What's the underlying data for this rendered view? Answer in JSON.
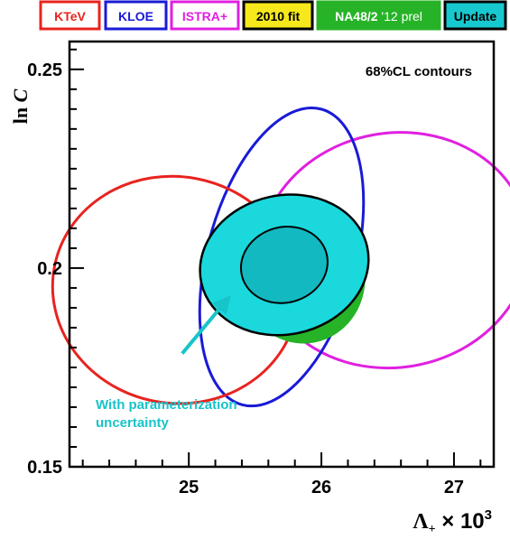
{
  "chart_data": {
    "type": "scatter",
    "subtype": "confidence-ellipses",
    "annotation_top_right": "68%CL contours",
    "annotation_arrow_text": [
      "With parameterization",
      "uncertainty"
    ],
    "xlabel": {
      "main": "Λ",
      "sub": "+",
      "suffix": "× 10",
      "exp": "3"
    },
    "ylabel": {
      "prefix": "ln",
      "var": "C"
    },
    "xlim": [
      24.1,
      27.3
    ],
    "ylim": [
      0.15,
      0.257
    ],
    "x_ticks": [
      {
        "value": 25,
        "label": "25"
      },
      {
        "value": 26,
        "label": "26"
      },
      {
        "value": 27,
        "label": "27"
      }
    ],
    "y_ticks": [
      {
        "value": 0.15,
        "label": "0.15"
      },
      {
        "value": 0.2,
        "label": "0.2"
      },
      {
        "value": 0.25,
        "label": "0.25"
      }
    ],
    "legend_placement": "top",
    "legend": [
      {
        "key": "ktev",
        "parts": [
          {
            "text": "KTeV",
            "bold": true,
            "color": "#e8231f"
          }
        ],
        "box_fill": "#ffffff",
        "box_border": "#e8231f"
      },
      {
        "key": "kloe",
        "parts": [
          {
            "text": "KLOE",
            "bold": true,
            "color": "#1a1ad6"
          }
        ],
        "box_fill": "#ffffff",
        "box_border": "#1a1ad6"
      },
      {
        "key": "istra",
        "parts": [
          {
            "text": "ISTRA+",
            "bold": true,
            "color": "#e020e0"
          }
        ],
        "box_fill": "#ffffff",
        "box_border": "#e020e0"
      },
      {
        "key": "fit2010",
        "parts": [
          {
            "text": "2010 fit",
            "bold": true,
            "color": "#000000"
          }
        ],
        "box_fill": "#f7e81c",
        "box_border": "#000000"
      },
      {
        "key": "na48",
        "parts": [
          {
            "text": "NA48/2",
            "bold": true,
            "color": "#ffffff"
          },
          {
            "text": " '12 prel",
            "bold": false,
            "color": "#ffffff"
          }
        ],
        "box_fill": "#27b327",
        "box_border": "#27b327"
      },
      {
        "key": "update",
        "parts": [
          {
            "text": "Update",
            "bold": true,
            "color": "#000000"
          }
        ],
        "box_fill": "#17c9cf",
        "box_border": "#000000"
      }
    ],
    "series": [
      {
        "name": "ISTRA+",
        "color": "#e020e0",
        "fill": "none",
        "center": [
          26.55,
          0.2045
        ],
        "semi_axes": [
          1.02,
          0.0295
        ],
        "angle_deg": 10,
        "stroke_width": 3
      },
      {
        "name": "KLOE",
        "color": "#1a1ad6",
        "fill": "none",
        "center": [
          25.7,
          0.2028
        ],
        "semi_axes": [
          0.56,
          0.0385
        ],
        "angle_deg": -15,
        "stroke_width": 3
      },
      {
        "name": "KTeV",
        "color": "#e8231f",
        "fill": "none",
        "center": [
          24.9,
          0.1945
        ],
        "semi_axes": [
          0.93,
          0.0285
        ],
        "angle_deg": -11,
        "stroke_width": 3
      },
      {
        "name": "NA48/2 '12 prel",
        "color": "#1faa1f",
        "fill": "#27b327",
        "center": [
          25.86,
          0.1975
        ],
        "semi_axes": [
          0.47,
          0.0165
        ],
        "angle_deg": 5,
        "stroke_width": 0
      },
      {
        "name": "2010 fit",
        "color": "#000000",
        "fill": "#f7e81c",
        "center": [
          25.5,
          0.2015
        ],
        "semi_axes": [
          0.35,
          0.0095
        ],
        "angle_deg": 0,
        "stroke_width": 2
      },
      {
        "name": "Update (with parameterization uncertainty)",
        "color": "#000000",
        "fill": "#1ad8dc",
        "center": [
          25.72,
          0.2008
        ],
        "semi_axes": [
          0.64,
          0.0175
        ],
        "angle_deg": 12,
        "stroke_width": 2.5
      },
      {
        "name": "Update",
        "color": "#000000",
        "fill": "#13b9c0",
        "center": [
          25.72,
          0.2008
        ],
        "semi_axes": [
          0.33,
          0.0095
        ],
        "angle_deg": 16,
        "stroke_width": 2
      }
    ],
    "arrow": {
      "from": [
        24.95,
        0.1785
      ],
      "to": [
        25.3,
        0.1925
      ],
      "color": "#17c4c9"
    },
    "colors": {
      "annotation": "#17c4c9",
      "axis": "#000000"
    }
  }
}
